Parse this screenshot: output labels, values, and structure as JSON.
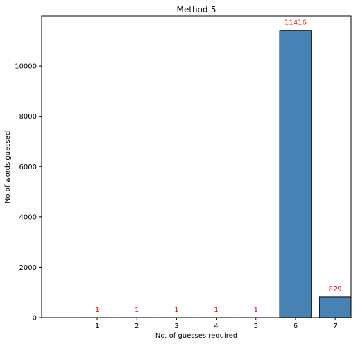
{
  "chart_data": {
    "type": "bar",
    "title": "Method-5",
    "xlabel": "No. of guesses required",
    "ylabel": "No of words guessed",
    "categories": [
      "1",
      "2",
      "3",
      "4",
      "5",
      "6",
      "7"
    ],
    "values": [
      1,
      1,
      1,
      1,
      1,
      11416,
      829
    ],
    "data_labels": [
      "1",
      "1",
      "1",
      "1",
      "1",
      "11416",
      "829"
    ],
    "ylim": [
      0,
      11986.8
    ],
    "yticks": [
      0,
      2000,
      4000,
      6000,
      8000,
      10000
    ],
    "ytick_labels": [
      "0",
      "2000",
      "4000",
      "6000",
      "8000",
      "10000"
    ],
    "grid": false,
    "legend": "none",
    "colors": {
      "bar_fill": "#4682b4",
      "bar_edge": "#000000",
      "data_label": "#ff0000",
      "axis": "#000000"
    }
  }
}
